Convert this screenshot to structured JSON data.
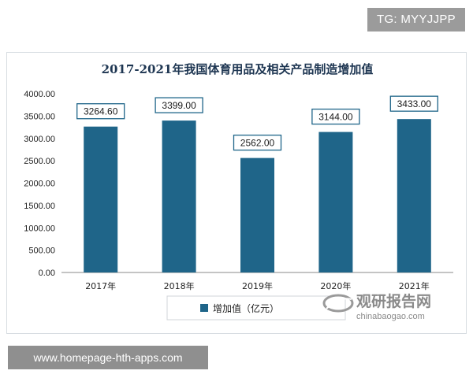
{
  "badges": {
    "tg": "TG: MYYJJPP",
    "url": "www.homepage-hth-apps.com"
  },
  "watermark": {
    "cn": "观研报告网",
    "en": "chinabaogao.com"
  },
  "chart_data": {
    "type": "bar",
    "title": "2017-2021年我国体育用品及相关产品制造增加值",
    "categories": [
      "2017年",
      "2018年",
      "2019年",
      "2020年",
      "2021年"
    ],
    "series": [
      {
        "name": "增加值（亿元）",
        "values": [
          3264.6,
          3399.0,
          2562.0,
          3144.0,
          3433.0
        ]
      }
    ],
    "data_labels": [
      "3264.60",
      "3399.00",
      "2562.00",
      "3144.00",
      "3433.00"
    ],
    "y_ticks": [
      "0.00",
      "500.00",
      "1000.00",
      "1500.00",
      "2000.00",
      "2500.00",
      "3000.00",
      "3500.00",
      "4000.00"
    ],
    "ylim": [
      0,
      4000
    ],
    "grid": false,
    "legend_position": "bottom-left",
    "colors": {
      "bar": "#1f6589",
      "label_border": "#1f6589",
      "axis": "#888888"
    }
  }
}
